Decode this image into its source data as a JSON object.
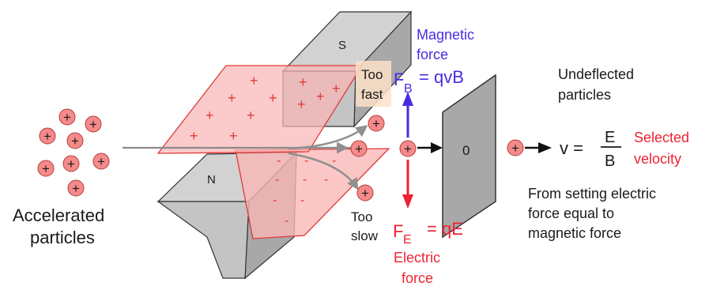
{
  "colors": {
    "magnetic": "#4b2be0",
    "electric": "#ee2233",
    "text": "#1a1a1a",
    "particle_fill": "#f48a8a",
    "plate_fill": "#f9b6b6",
    "plate_stroke": "#e03a3a",
    "magnet_fill": "#c8c8c8",
    "magnet_dark": "#7d7d7d"
  },
  "icons": {
    "particle": "plus-circle-icon"
  },
  "particle_symbol": "+",
  "plate_signs": {
    "positive": "+",
    "negative": "-"
  },
  "magnets": {
    "top_pole": "S",
    "bottom_pole": "N"
  },
  "aperture_label": "0",
  "labels": {
    "accelerated": [
      "Accelerated",
      "particles"
    ],
    "too_fast": [
      "Too",
      "fast"
    ],
    "too_slow": [
      "Too",
      "slow"
    ],
    "magnetic_force": [
      "Magnetic",
      "force"
    ],
    "electric_force": [
      "Electric",
      "force"
    ],
    "undeflected": [
      "Undeflected",
      "particles"
    ],
    "selected_velocity": [
      "Selected",
      "velocity"
    ],
    "explanation": [
      "From setting electric",
      "force equal to",
      "magnetic force"
    ]
  },
  "equations": {
    "fb_symbol": "F",
    "fb_sub": "B",
    "fb_rhs": "= qvB",
    "fe_symbol": "F",
    "fe_sub": "E",
    "fe_rhs": "= qE",
    "v_lhs": "v =",
    "v_num": "E",
    "v_den": "B"
  }
}
